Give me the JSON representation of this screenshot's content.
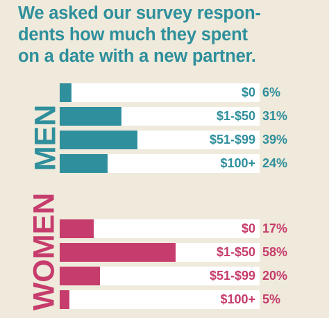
{
  "title_lines": [
    "We asked our survey respon-",
    "dents how much they spent",
    "on a date with a new partner."
  ],
  "colors": {
    "men": "#2f8f9c",
    "women": "#c63c6c",
    "background": "#efeadb",
    "track": "#ffffff"
  },
  "chart_data": [
    {
      "type": "bar",
      "orientation": "horizontal",
      "group_label": "MEN",
      "categories": [
        "$0",
        "$1-$50",
        "$51-$99",
        "$100+"
      ],
      "values": [
        6,
        31,
        39,
        24
      ],
      "value_labels": [
        "6%",
        "31%",
        "39%",
        "24%"
      ],
      "xlim": [
        0,
        100
      ]
    },
    {
      "type": "bar",
      "orientation": "horizontal",
      "group_label": "WOMEN",
      "categories": [
        "$0",
        "$1-$50",
        "$51-$99",
        "$100+"
      ],
      "values": [
        17,
        58,
        20,
        5
      ],
      "value_labels": [
        "17%",
        "58%",
        "20%",
        "5%"
      ],
      "xlim": [
        0,
        100
      ]
    }
  ]
}
